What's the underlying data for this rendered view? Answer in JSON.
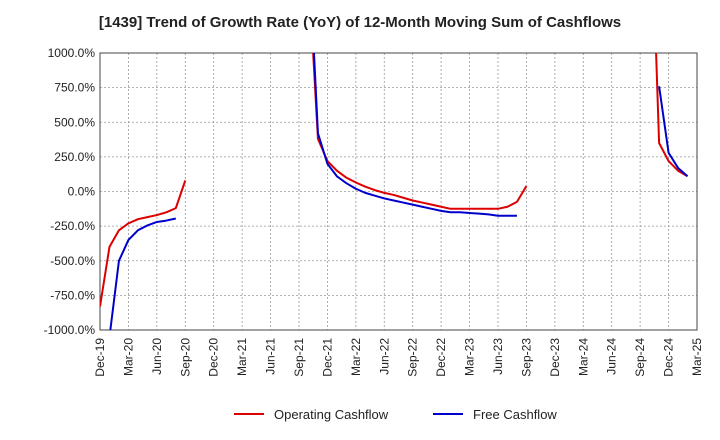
{
  "chart_data": {
    "type": "line",
    "title": "[1439]  Trend of Growth Rate (YoY) of 12-Month Moving Sum of Cashflows",
    "xlabel": "",
    "ylabel": "",
    "x_tick_labels": [
      "Dec-19",
      "Mar-20",
      "Jun-20",
      "Sep-20",
      "Dec-20",
      "Mar-21",
      "Jun-21",
      "Sep-21",
      "Dec-21",
      "Mar-22",
      "Jun-22",
      "Sep-22",
      "Dec-22",
      "Mar-23",
      "Jun-23",
      "Sep-23",
      "Dec-23",
      "Mar-24",
      "Jun-24",
      "Sep-24",
      "Dec-24",
      "Mar-25"
    ],
    "y_tick_labels": [
      "1000.0%",
      "750.0%",
      "500.0%",
      "250.0%",
      "0.0%",
      "-250.0%",
      "-500.0%",
      "-750.0%",
      "-1000.0%"
    ],
    "y_ticks": [
      1000,
      750,
      500,
      250,
      0,
      -250,
      -500,
      -750,
      -1000
    ],
    "ylim": [
      -1000,
      1000
    ],
    "x_range_months": [
      0,
      63
    ],
    "grid": true,
    "legend_position": "bottom-center",
    "series": [
      {
        "name": "Operating Cashflow",
        "color": "#dd0000",
        "points": [
          [
            0,
            -830
          ],
          [
            1,
            -400
          ],
          [
            2,
            -280
          ],
          [
            3,
            -230
          ],
          [
            4,
            -200
          ],
          [
            5,
            -185
          ],
          [
            6,
            -170
          ],
          [
            7,
            -150
          ],
          [
            8,
            -120
          ],
          [
            9,
            80
          ],
          [
            22,
            1600
          ],
          [
            23,
            380
          ],
          [
            24,
            220
          ],
          [
            25,
            150
          ],
          [
            26,
            100
          ],
          [
            27,
            65
          ],
          [
            28,
            35
          ],
          [
            29,
            10
          ],
          [
            30,
            -10
          ],
          [
            31,
            -25
          ],
          [
            32,
            -45
          ],
          [
            33,
            -65
          ],
          [
            34,
            -80
          ],
          [
            35,
            -95
          ],
          [
            36,
            -110
          ],
          [
            37,
            -125
          ],
          [
            38,
            -125
          ],
          [
            39,
            -125
          ],
          [
            40,
            -125
          ],
          [
            41,
            -125
          ],
          [
            42,
            -125
          ],
          [
            43,
            -110
          ],
          [
            44,
            -75
          ],
          [
            45,
            40
          ],
          [
            58,
            2400
          ],
          [
            59,
            350
          ],
          [
            60,
            220
          ],
          [
            61,
            150
          ],
          [
            62,
            110
          ]
        ]
      },
      {
        "name": "Free Cashflow",
        "color": "#0000cc",
        "points": [
          [
            1,
            -1050
          ],
          [
            2,
            -500
          ],
          [
            3,
            -350
          ],
          [
            4,
            -280
          ],
          [
            5,
            -245
          ],
          [
            6,
            -220
          ],
          [
            7,
            -210
          ],
          [
            8,
            -195
          ],
          [
            22,
            1800
          ],
          [
            23,
            420
          ],
          [
            24,
            200
          ],
          [
            25,
            110
          ],
          [
            26,
            60
          ],
          [
            27,
            20
          ],
          [
            28,
            -10
          ],
          [
            29,
            -30
          ],
          [
            30,
            -50
          ],
          [
            31,
            -65
          ],
          [
            32,
            -80
          ],
          [
            33,
            -95
          ],
          [
            34,
            -110
          ],
          [
            35,
            -125
          ],
          [
            36,
            -140
          ],
          [
            37,
            -150
          ],
          [
            38,
            -150
          ],
          [
            39,
            -155
          ],
          [
            40,
            -160
          ],
          [
            41,
            -165
          ],
          [
            42,
            -175
          ],
          [
            43,
            -175
          ],
          [
            44,
            -175
          ],
          [
            59,
            760
          ],
          [
            60,
            280
          ],
          [
            61,
            170
          ],
          [
            62,
            110
          ]
        ]
      }
    ]
  }
}
